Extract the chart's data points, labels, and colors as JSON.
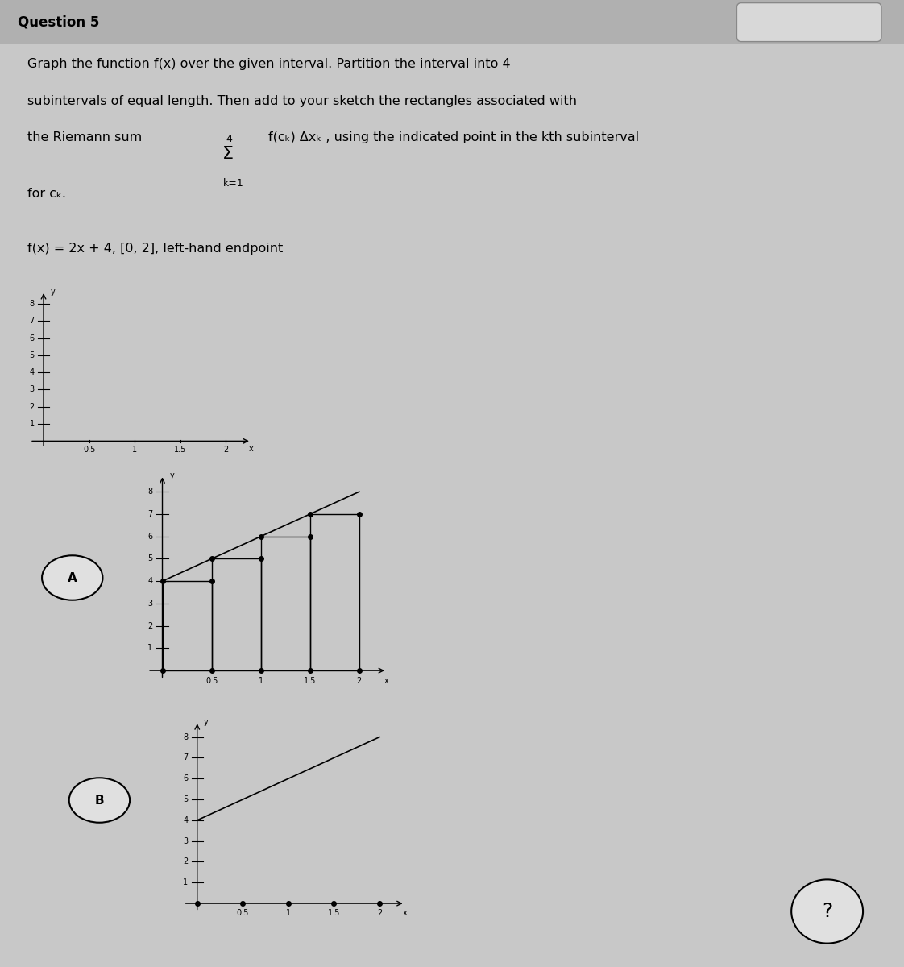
{
  "xmin": 0,
  "xmax": 2,
  "ymin": 0,
  "ymax": 8,
  "xticks": [
    0.5,
    1,
    1.5,
    2
  ],
  "yticks": [
    1,
    2,
    3,
    4,
    5,
    6,
    7,
    8
  ],
  "n_subintervals": 4,
  "a": 0,
  "b": 2,
  "slope": 2,
  "intercept": 4,
  "bg_color": "#c8c8c8",
  "page_bg": "#e0e0e0",
  "text_color": "#000000",
  "line1": "Graph the function f(x) over the given interval. Partition the interval into 4",
  "line2": "subintervals of equal length. Then add to your sketch the rectangles associated with",
  "line3_pre": "the Riemann sum",
  "line3_post": "f(cₖ) Δxₖ , using the indicated point in the kth subinterval",
  "line4": "for cₖ.",
  "function_label": "f(x) = 2x + 4, [0, 2], left-hand endpoint",
  "header": "Question 5",
  "label_A": "A",
  "label_B": "B"
}
